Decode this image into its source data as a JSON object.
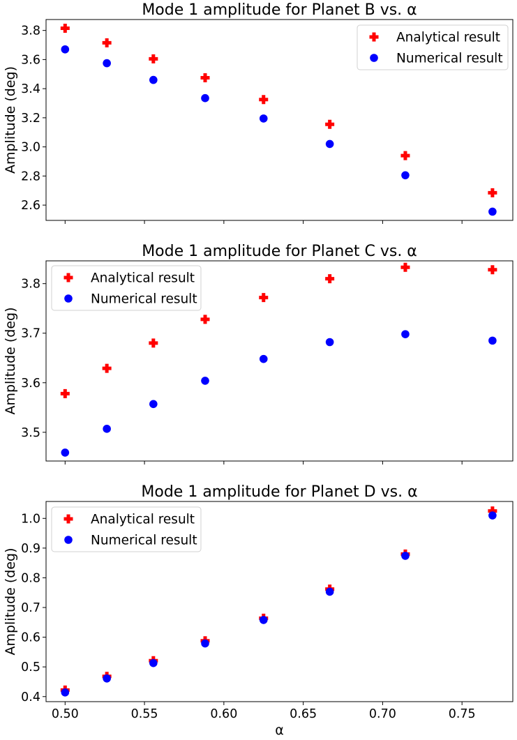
{
  "chart_data": [
    {
      "type": "scatter",
      "title": "Mode 1 amplitude for Planet B vs. α",
      "xlabel": "",
      "ylabel": "Amplitude (deg)",
      "xlim": [
        0.488,
        0.782
      ],
      "ylim": [
        2.495,
        3.875
      ],
      "xticks": [
        0.5,
        0.55,
        0.6,
        0.65,
        0.7,
        0.75
      ],
      "xtick_labels_visible": false,
      "yticks": [
        2.6,
        2.8,
        3.0,
        3.2,
        3.4,
        3.6,
        3.8
      ],
      "ytick_labels": [
        "2.6",
        "2.8",
        "3.0",
        "3.2",
        "3.4",
        "3.6",
        "3.8"
      ],
      "legend_position": "upper right",
      "grid": false,
      "x": [
        0.5,
        0.5263,
        0.5556,
        0.5882,
        0.625,
        0.6667,
        0.7143,
        0.7692
      ],
      "series": [
        {
          "name": "Analytical result",
          "marker": "plus",
          "color": "#ff0000",
          "values": [
            3.815,
            3.715,
            3.605,
            3.475,
            3.325,
            3.155,
            2.94,
            2.685
          ]
        },
        {
          "name": "Numerical result",
          "marker": "circle",
          "color": "#0000ff",
          "values": [
            3.67,
            3.575,
            3.46,
            3.335,
            3.195,
            3.02,
            2.805,
            2.555
          ]
        }
      ]
    },
    {
      "type": "scatter",
      "title": "Mode 1 amplitude for Planet C vs. α",
      "xlabel": "",
      "ylabel": "Amplitude (deg)",
      "xlim": [
        0.488,
        0.782
      ],
      "ylim": [
        3.442,
        3.846
      ],
      "xticks": [
        0.5,
        0.55,
        0.6,
        0.65,
        0.7,
        0.75
      ],
      "xtick_labels_visible": false,
      "yticks": [
        3.5,
        3.6,
        3.7,
        3.8
      ],
      "ytick_labels": [
        "3.5",
        "3.6",
        "3.7",
        "3.8"
      ],
      "legend_position": "upper left",
      "grid": false,
      "x": [
        0.5,
        0.5263,
        0.5556,
        0.5882,
        0.625,
        0.6667,
        0.7143,
        0.7692
      ],
      "series": [
        {
          "name": "Analytical result",
          "marker": "plus",
          "color": "#ff0000",
          "values": [
            3.578,
            3.629,
            3.68,
            3.728,
            3.772,
            3.81,
            3.833,
            3.828
          ]
        },
        {
          "name": "Numerical result",
          "marker": "circle",
          "color": "#0000ff",
          "values": [
            3.459,
            3.507,
            3.557,
            3.604,
            3.648,
            3.682,
            3.698,
            3.685
          ]
        }
      ]
    },
    {
      "type": "scatter",
      "title": "Mode 1 amplitude for Planet D vs. α",
      "xlabel": "α",
      "ylabel": "Amplitude (deg)",
      "xlim": [
        0.488,
        0.782
      ],
      "ylim": [
        0.383,
        1.057
      ],
      "xticks": [
        0.5,
        0.55,
        0.6,
        0.65,
        0.7,
        0.75
      ],
      "xtick_labels": [
        "0.50",
        "0.55",
        "0.60",
        "0.65",
        "0.70",
        "0.75"
      ],
      "xtick_labels_visible": true,
      "yticks": [
        0.4,
        0.5,
        0.6,
        0.7,
        0.8,
        0.9,
        1.0
      ],
      "ytick_labels": [
        "0.4",
        "0.5",
        "0.6",
        "0.7",
        "0.8",
        "0.9",
        "1.0"
      ],
      "legend_position": "upper left",
      "grid": false,
      "x": [
        0.5,
        0.5263,
        0.5556,
        0.5882,
        0.625,
        0.6667,
        0.7143,
        0.7692
      ],
      "series": [
        {
          "name": "Analytical result",
          "marker": "plus",
          "color": "#ff0000",
          "values": [
            0.422,
            0.468,
            0.521,
            0.588,
            0.664,
            0.762,
            0.88,
            1.025
          ]
        },
        {
          "name": "Numerical result",
          "marker": "circle",
          "color": "#0000ff",
          "values": [
            0.414,
            0.461,
            0.513,
            0.579,
            0.658,
            0.753,
            0.874,
            1.01
          ]
        }
      ]
    }
  ]
}
